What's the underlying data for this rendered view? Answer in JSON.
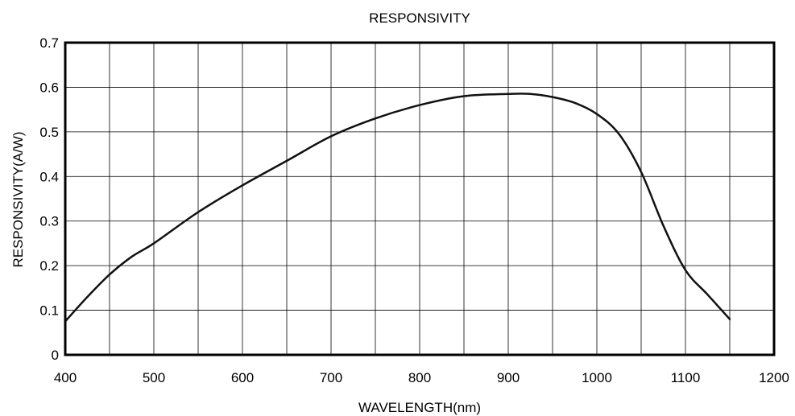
{
  "chart_data": {
    "type": "line",
    "title": "RESPONSIVITY",
    "xlabel": "WAVELENGTH(nm)",
    "ylabel": "RESPONSIVITY(A/W)",
    "xlim": [
      400,
      1200
    ],
    "ylim": [
      0,
      0.7
    ],
    "xticks": [
      400,
      500,
      600,
      700,
      800,
      900,
      1000,
      1100,
      1200
    ],
    "yticks": [
      0,
      0.1,
      0.2,
      0.3,
      0.4,
      0.5,
      0.6,
      0.7
    ],
    "xtick_labels": [
      "400",
      "500",
      "600",
      "700",
      "800",
      "900",
      "1000",
      "1100",
      "1200"
    ],
    "ytick_labels": [
      "0",
      "0.1",
      "0.2",
      "0.3",
      "0.4",
      "0.5",
      "0.6",
      "0.7"
    ],
    "grid": true,
    "x_grid_step": 50,
    "y_grid_step": 0.1,
    "line_color": "#111111",
    "series": [
      {
        "x": [
          400,
          425,
          450,
          475,
          500,
          550,
          600,
          650,
          700,
          750,
          800,
          850,
          900,
          925,
          950,
          975,
          1000,
          1025,
          1050,
          1075,
          1100,
          1125,
          1150
        ],
        "y": [
          0.075,
          0.13,
          0.18,
          0.22,
          0.25,
          0.32,
          0.38,
          0.435,
          0.49,
          0.53,
          0.56,
          0.58,
          0.585,
          0.585,
          0.578,
          0.565,
          0.54,
          0.495,
          0.41,
          0.29,
          0.19,
          0.135,
          0.08
        ]
      }
    ]
  }
}
